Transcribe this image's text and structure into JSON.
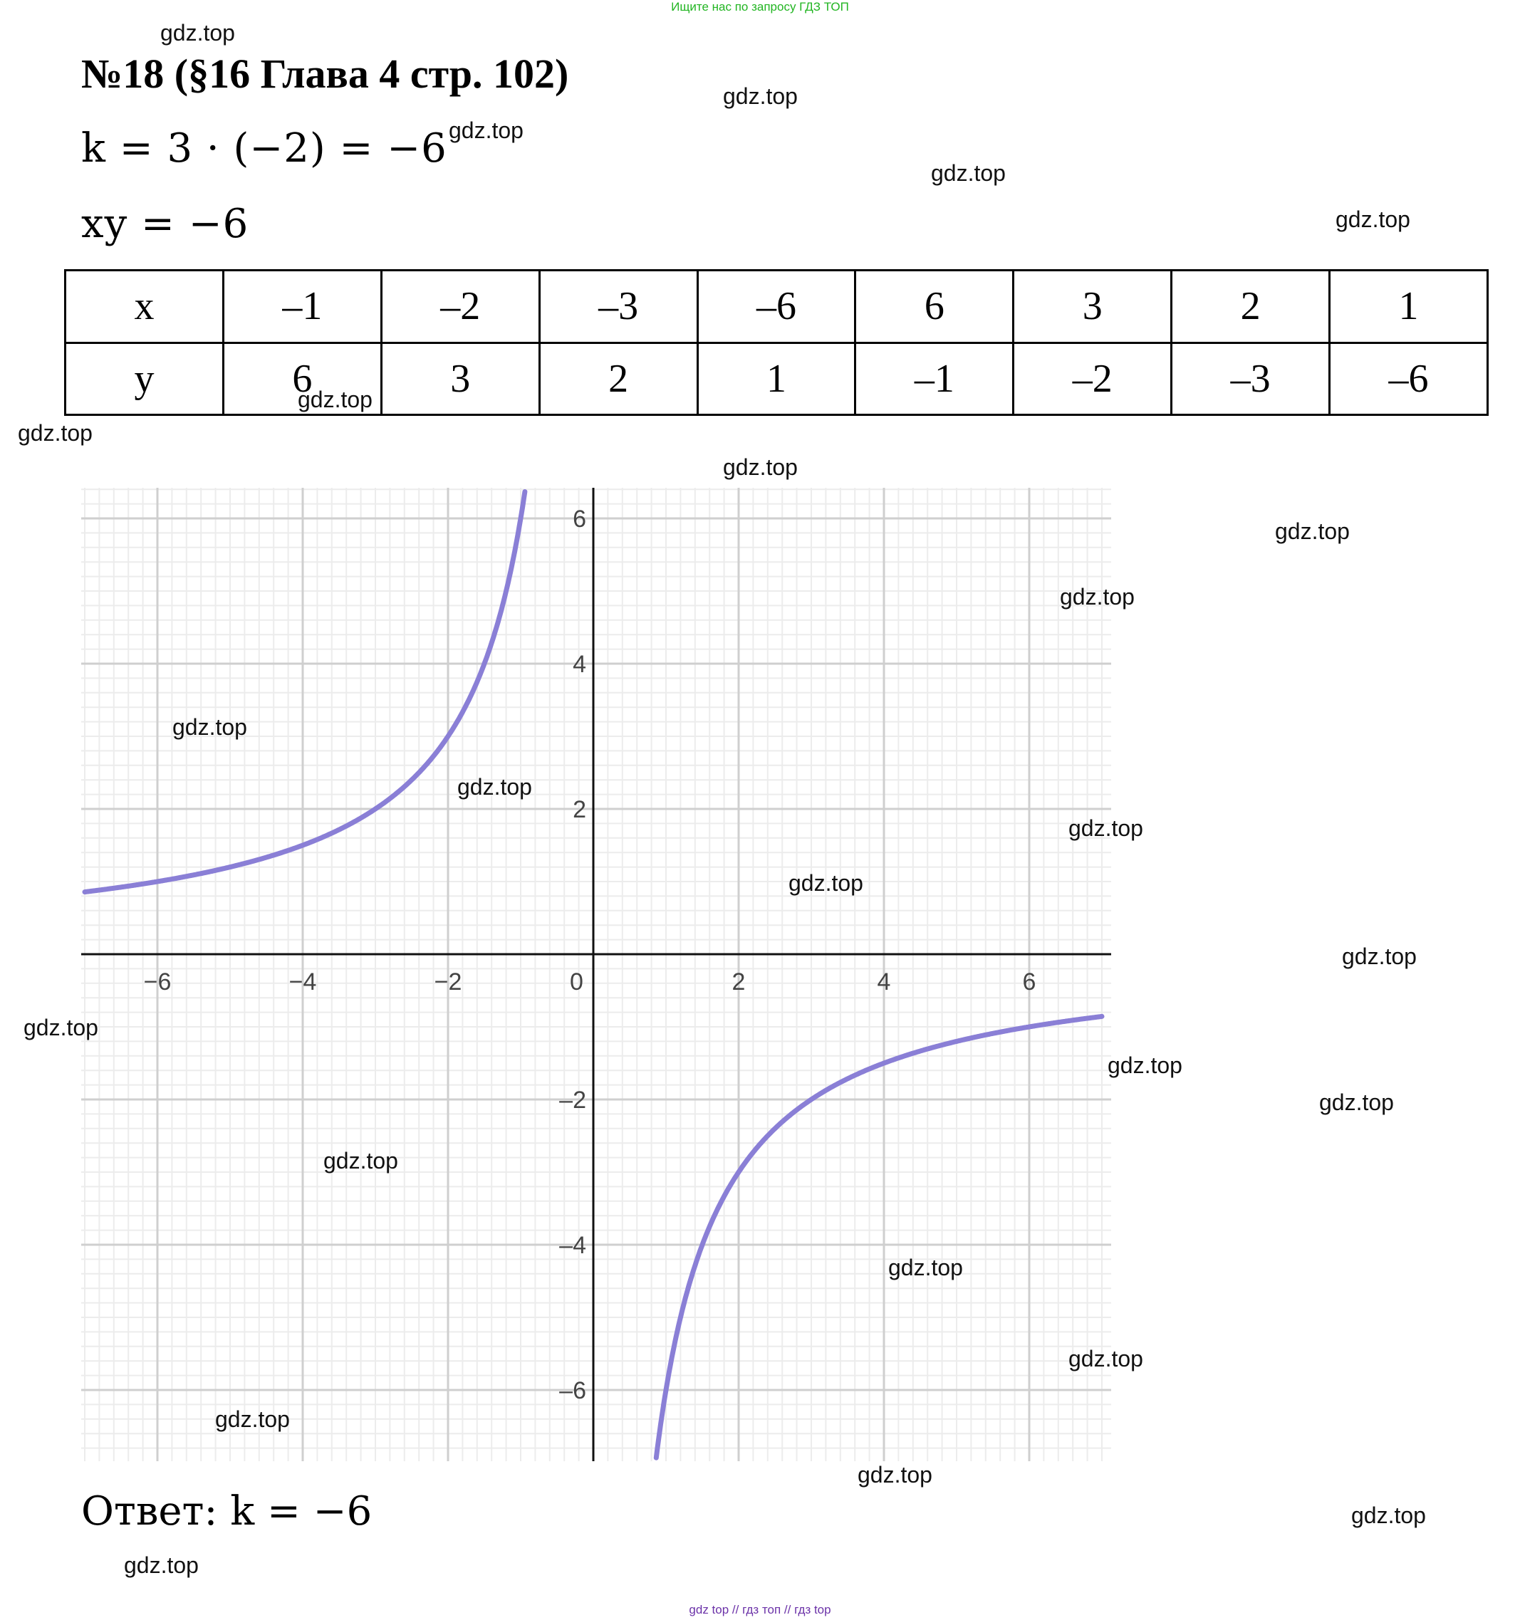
{
  "banner": "Ищите нас по запросу ГДЗ ТОП",
  "title": "№18 (§16 Глава 4  стр. 102)",
  "formula1": "k = 3 · (−2) = −6",
  "formula2": "xy = −6",
  "table": {
    "row_x_label": "x",
    "row_y_label": "y",
    "x": [
      "–1",
      "–2",
      "–3",
      "–6",
      "6",
      "3",
      "2",
      "1"
    ],
    "y": [
      "6",
      "3",
      "2",
      "1",
      "–1",
      "–2",
      "–3",
      "–6"
    ]
  },
  "chart_data": {
    "type": "line",
    "function": "y = -6/x",
    "curve_color": "#8a7fd6",
    "xlim": [
      -7,
      7
    ],
    "ylim": [
      -7,
      6.4
    ],
    "x_ticks": [
      "−6",
      "−4",
      "−2",
      "0",
      "2",
      "4",
      "6"
    ],
    "y_ticks": [
      "6",
      "4",
      "2",
      "–2",
      "–4",
      "–6"
    ],
    "grid": true,
    "series": [
      {
        "points_branch_negative_x": [
          [
            -7,
            0.857
          ],
          [
            -6,
            1
          ],
          [
            -4,
            1.5
          ],
          [
            -3,
            2
          ],
          [
            -2,
            3
          ],
          [
            -1.5,
            4
          ],
          [
            -1,
            6
          ]
        ],
        "points_branch_positive_x": [
          [
            0.86,
            -7
          ],
          [
            1,
            -6
          ],
          [
            1.5,
            -4
          ],
          [
            2,
            -3
          ],
          [
            3,
            -2
          ],
          [
            4,
            -1.5
          ],
          [
            6,
            -1
          ],
          [
            7,
            -0.857
          ]
        ]
      }
    ]
  },
  "answer": "Ответ: k = −6",
  "watermark": "gdz.top",
  "footer_links": "gdz top  //  гдз топ  //  гдз top"
}
